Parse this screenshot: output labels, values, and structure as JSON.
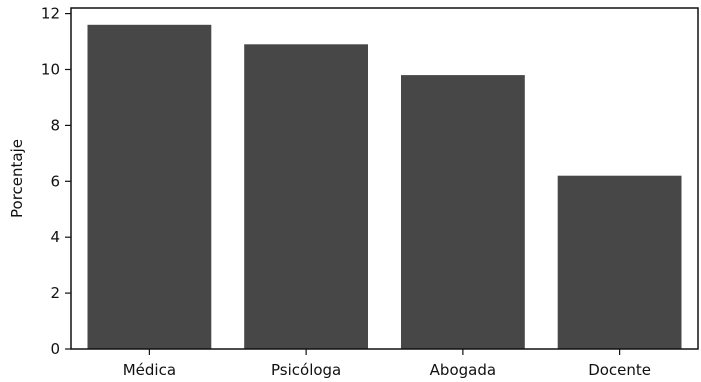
{
  "chart_data": {
    "type": "bar",
    "title": "",
    "xlabel": "",
    "ylabel": "Porcentaje",
    "categories": [
      "Médica",
      "Psicóloga",
      "Abogada",
      "Docente"
    ],
    "values": [
      11.6,
      10.9,
      9.8,
      6.2
    ],
    "ylim": [
      0,
      12.2
    ],
    "yticks": [
      0,
      2,
      4,
      6,
      8,
      10,
      12
    ],
    "grid": false,
    "legend": "none",
    "bar_color": "#474747"
  }
}
